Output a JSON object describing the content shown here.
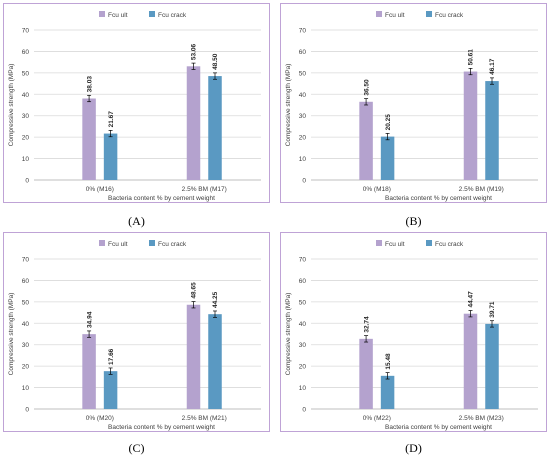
{
  "colors": {
    "ult": "#B4A2CE",
    "crack": "#5A99C2",
    "frame": "#BFA3D6",
    "grid": "#D9D9D9",
    "text": "#404040"
  },
  "panels": [
    {
      "caption": "(A)"
    },
    {
      "caption": "(B)"
    },
    {
      "caption": "(C)"
    },
    {
      "caption": "(D)"
    }
  ],
  "chart_data": [
    {
      "type": "bar",
      "ylabel": "Compressive  strength (MPa)",
      "xlabel": "Bacteria content % by cement weight",
      "ylim": [
        0,
        70
      ],
      "yticks": [
        "0",
        "10",
        "20",
        "30",
        "40",
        "50",
        "60",
        "70"
      ],
      "categories": [
        "0% (M16)",
        "2.5% BM (M17)"
      ],
      "series": [
        {
          "name": "Fcu ult",
          "values": [
            38.03,
            53.06
          ],
          "labels": [
            "38.03",
            "53.06"
          ]
        },
        {
          "name": "Fcu crack",
          "values": [
            21.67,
            48.5
          ],
          "labels": [
            "21.67",
            "48.50"
          ]
        }
      ],
      "legend": "top-left",
      "grid": true
    },
    {
      "type": "bar",
      "ylabel": "Compressive  strength (MPa)",
      "xlabel": "Bacteria content % by cement weight",
      "ylim": [
        0,
        70
      ],
      "yticks": [
        "0",
        "10",
        "20",
        "30",
        "40",
        "50",
        "60",
        "70"
      ],
      "categories": [
        "0% (M18)",
        "2.5% BM (M19)"
      ],
      "series": [
        {
          "name": "Fcu ult",
          "values": [
            36.5,
            50.61
          ],
          "labels": [
            "36.50",
            "50.61"
          ]
        },
        {
          "name": "Fcu crack",
          "values": [
            20.25,
            46.17
          ],
          "labels": [
            "20.25",
            "46.17"
          ]
        }
      ],
      "legend": "top-left",
      "grid": true
    },
    {
      "type": "bar",
      "ylabel": "Compressive  strength (MPa)",
      "xlabel": "Bacteria content % by cement weight",
      "ylim": [
        0,
        70
      ],
      "yticks": [
        "0",
        "10",
        "20",
        "30",
        "40",
        "50",
        "60",
        "70"
      ],
      "categories": [
        "0% (M20)",
        "2.5% BM (M21)"
      ],
      "series": [
        {
          "name": "Fcu ult",
          "values": [
            34.94,
            48.65
          ],
          "labels": [
            "34.94",
            "48.65"
          ]
        },
        {
          "name": "Fcu crack",
          "values": [
            17.66,
            44.25
          ],
          "labels": [
            "17.66",
            "44.25"
          ]
        }
      ],
      "legend": "top-left",
      "grid": true
    },
    {
      "type": "bar",
      "ylabel": "Compressive  strength (MPa)",
      "xlabel": "Bacteria content % by cement weight",
      "ylim": [
        0,
        70
      ],
      "yticks": [
        "0",
        "10",
        "20",
        "30",
        "40",
        "50",
        "60",
        "70"
      ],
      "categories": [
        "0% (M22)",
        "2.5% BM (M23)"
      ],
      "series": [
        {
          "name": "Fcu ult",
          "values": [
            32.74,
            44.47
          ],
          "labels": [
            "32.74",
            "44.47"
          ]
        },
        {
          "name": "Fcu crack",
          "values": [
            15.48,
            39.71
          ],
          "labels": [
            "15.48",
            "39.71"
          ]
        }
      ],
      "legend": "top-left",
      "grid": true
    }
  ]
}
